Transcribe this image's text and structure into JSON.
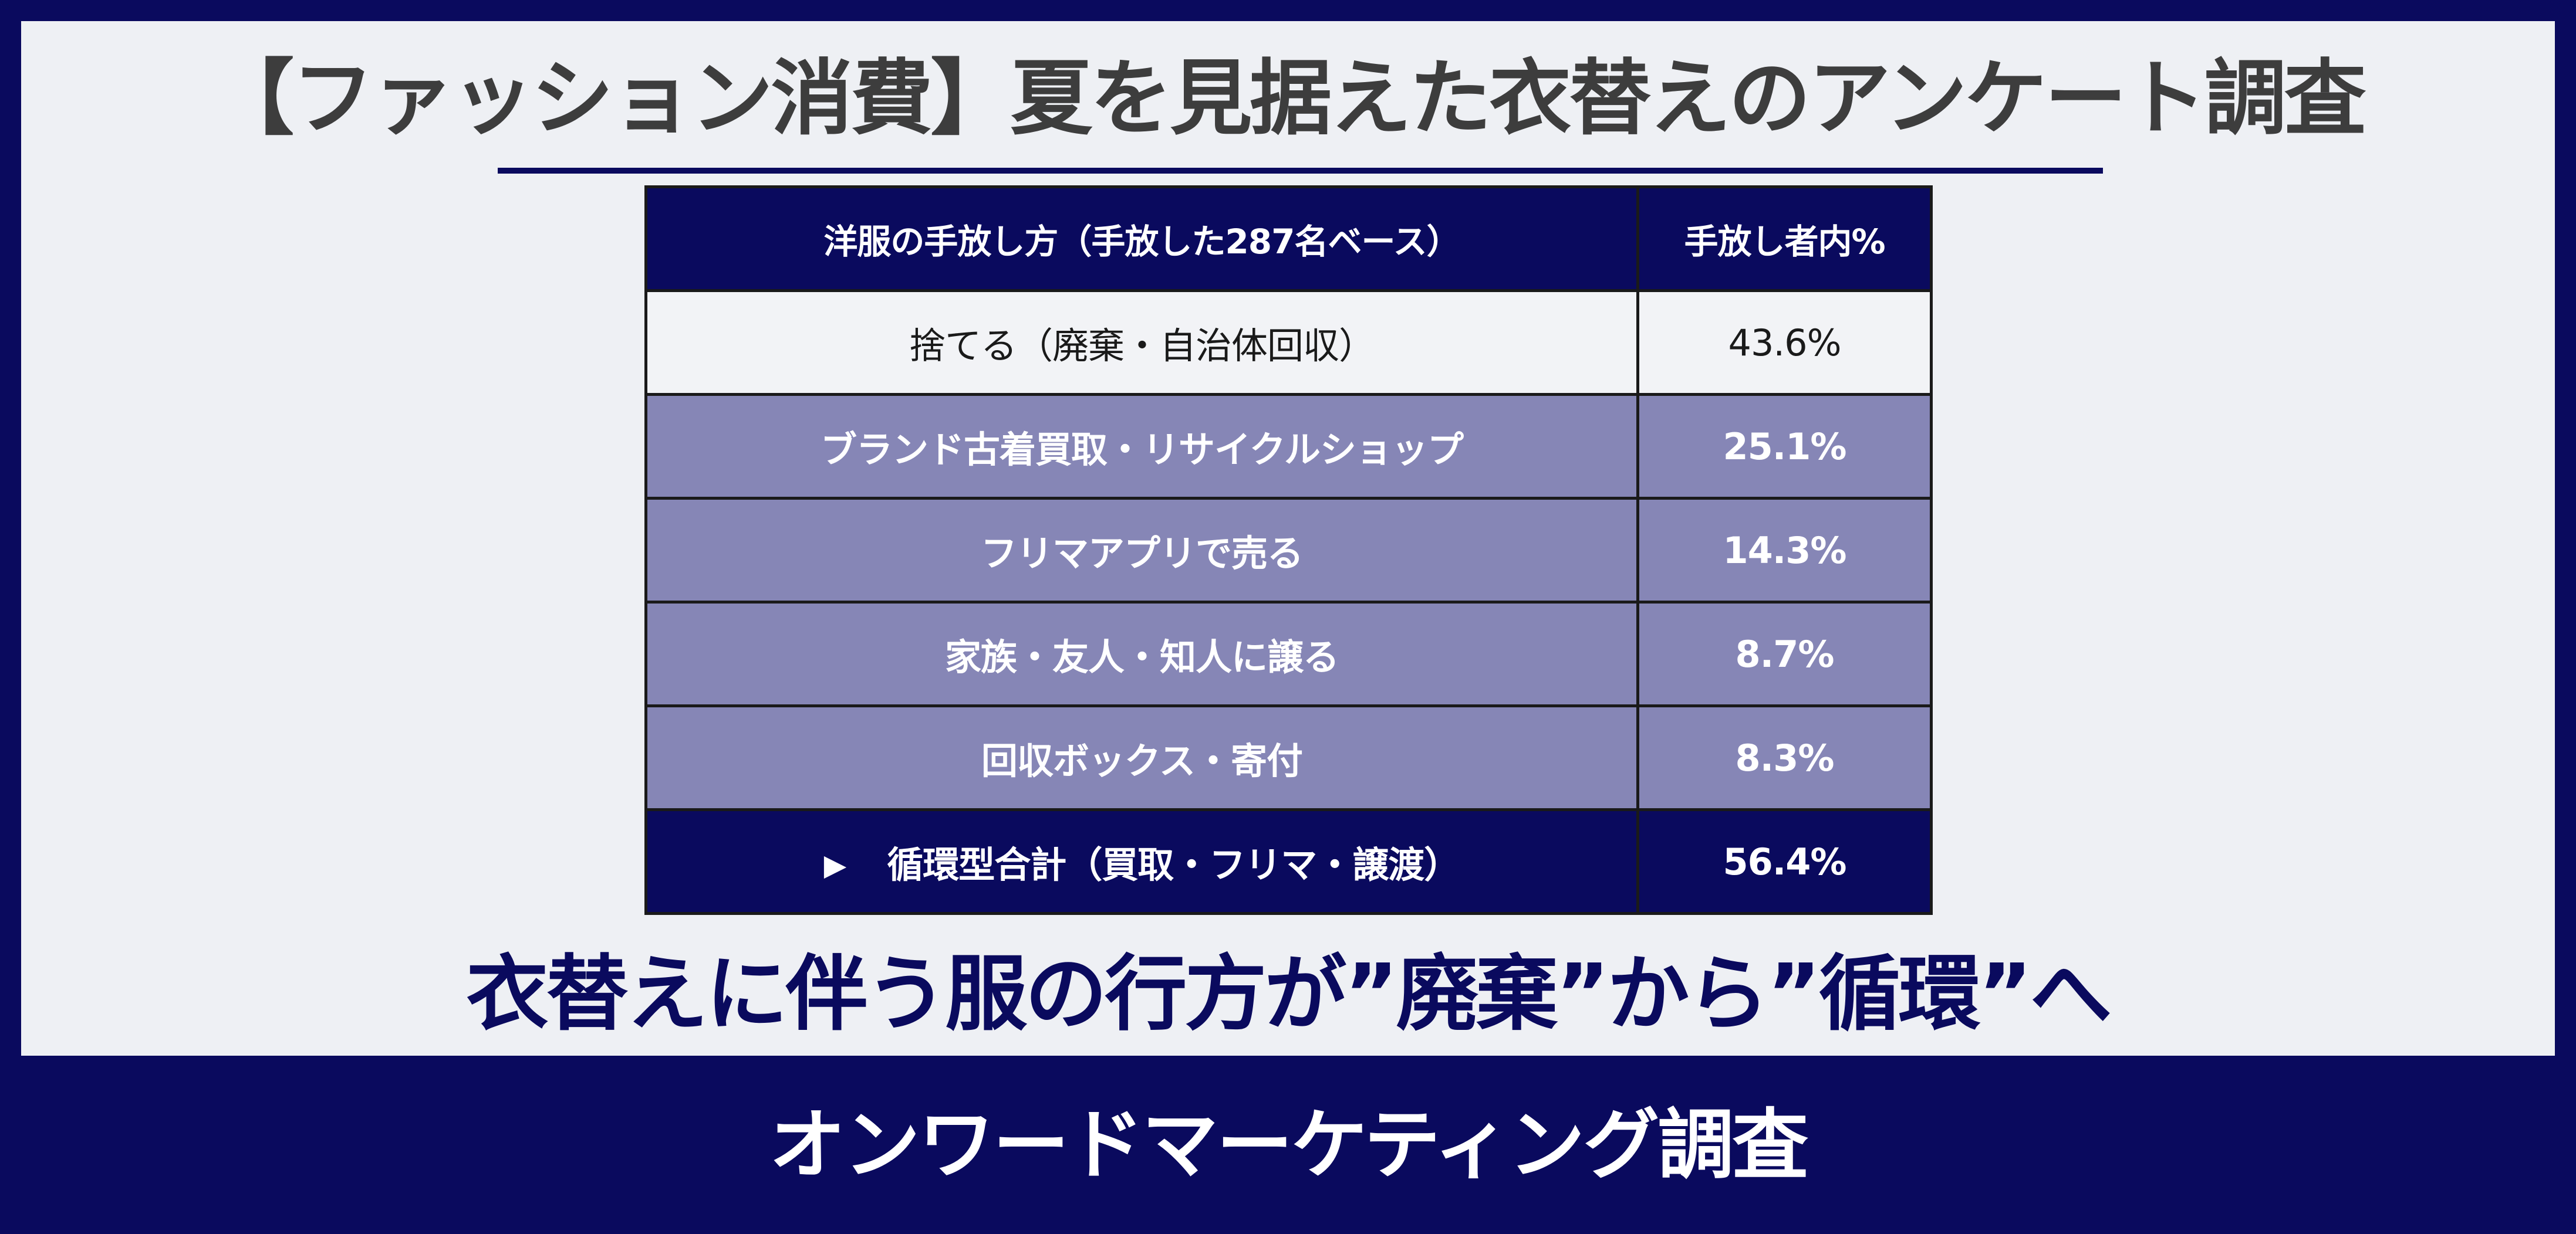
{
  "header": {
    "title": "【ファッション消費】夏を見据えた衣替えのアンケート調査"
  },
  "chart_data": {
    "type": "table",
    "columns": [
      "洋服の手放し方（手放した287名ベース）",
      "手放し者内%"
    ],
    "rows": [
      {
        "method": "捨てる（廃棄・自治体回収）",
        "percent": "43.6%",
        "value": 43.6
      },
      {
        "method": "ブランド古着買取・リサイクルショップ",
        "percent": "25.1%",
        "value": 25.1
      },
      {
        "method": "フリマアプリで売る",
        "percent": "14.3%",
        "value": 14.3
      },
      {
        "method": "家族・友人・知人に譲る",
        "percent": "8.7%",
        "value": 8.7
      },
      {
        "method": "回収ボックス・寄付",
        "percent": "8.3%",
        "value": 8.3
      }
    ],
    "total": {
      "marker": "▶",
      "method": "循環型合計（買取・フリマ・譲渡）",
      "percent": "56.4%",
      "value": 56.4
    }
  },
  "headline": "衣替えに伴う服の行方が”廃棄”から”循環”へ",
  "footer": {
    "text": "オンワードマーケティング調査"
  },
  "colors": {
    "navy": "#0a0a5e",
    "band": "#8686b6",
    "panel": "#eef0f4",
    "title_text": "#3d3d3d"
  }
}
